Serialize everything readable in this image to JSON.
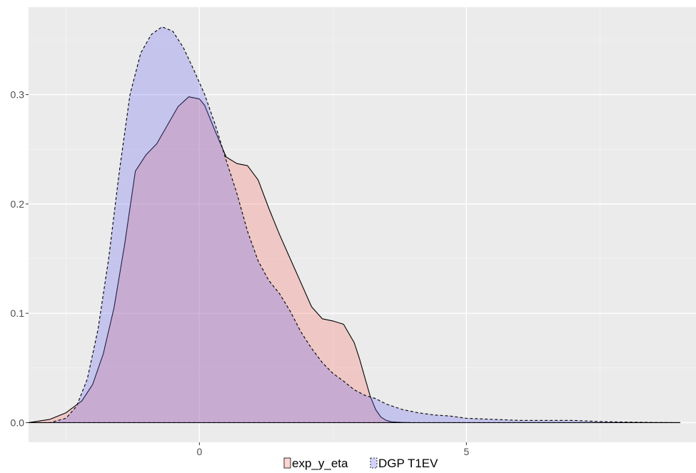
{
  "chart_data": {
    "type": "area",
    "title": "",
    "xlabel": "",
    "ylabel": "",
    "xlim": [
      -3.2,
      9.3
    ],
    "ylim": [
      -0.018,
      0.38
    ],
    "x_ticks": [
      0,
      5
    ],
    "y_ticks": [
      0.0,
      0.1,
      0.2,
      0.3
    ],
    "y_tick_labels": [
      "0.0",
      "0.1",
      "0.2",
      "0.3"
    ],
    "grid": true,
    "legend": "bottom",
    "series": [
      {
        "name": "exp_y_eta",
        "fill": "#F8766D",
        "fill_opacity": 0.3,
        "line": "solid",
        "x": [
          -3.2,
          -2.8,
          -2.5,
          -2.2,
          -2.0,
          -1.8,
          -1.6,
          -1.4,
          -1.2,
          -1.0,
          -0.8,
          -0.6,
          -0.4,
          -0.2,
          0.0,
          0.1,
          0.3,
          0.5,
          0.7,
          0.9,
          1.1,
          1.3,
          1.5,
          1.7,
          1.9,
          2.1,
          2.3,
          2.5,
          2.7,
          2.9,
          3.0,
          3.1,
          3.2,
          3.3,
          3.4,
          3.5,
          3.6,
          3.8,
          4.0,
          4.5,
          5.0,
          6.0,
          7.0,
          8.0,
          9.0
        ],
        "y": [
          0.0,
          0.003,
          0.009,
          0.02,
          0.035,
          0.063,
          0.105,
          0.163,
          0.23,
          0.245,
          0.255,
          0.272,
          0.289,
          0.298,
          0.296,
          0.29,
          0.266,
          0.243,
          0.237,
          0.235,
          0.222,
          0.196,
          0.172,
          0.15,
          0.128,
          0.106,
          0.095,
          0.093,
          0.09,
          0.073,
          0.058,
          0.041,
          0.024,
          0.012,
          0.005,
          0.002,
          0.0007,
          0.0002,
          0.0,
          0.0,
          0.0,
          0.0,
          0.0,
          0.0,
          0.0
        ]
      },
      {
        "name": "DGP T1EV",
        "fill": "#6A6AF0",
        "fill_opacity": 0.3,
        "line": "dashed",
        "x": [
          -3.2,
          -2.8,
          -2.5,
          -2.3,
          -2.1,
          -1.9,
          -1.7,
          -1.5,
          -1.3,
          -1.1,
          -0.9,
          -0.7,
          -0.5,
          -0.3,
          -0.1,
          0.1,
          0.3,
          0.5,
          0.7,
          0.9,
          1.1,
          1.3,
          1.5,
          1.7,
          1.9,
          2.1,
          2.3,
          2.5,
          2.7,
          2.9,
          3.1,
          3.3,
          3.5,
          3.8,
          4.1,
          4.4,
          4.7,
          5.0,
          5.5,
          6.0,
          6.5,
          7.0,
          7.5,
          8.0,
          8.5,
          9.0
        ],
        "y": [
          0.0,
          0.0,
          0.004,
          0.015,
          0.04,
          0.085,
          0.15,
          0.23,
          0.3,
          0.338,
          0.355,
          0.362,
          0.358,
          0.343,
          0.322,
          0.3,
          0.272,
          0.24,
          0.21,
          0.175,
          0.148,
          0.13,
          0.118,
          0.102,
          0.083,
          0.068,
          0.055,
          0.045,
          0.038,
          0.03,
          0.025,
          0.022,
          0.017,
          0.012,
          0.009,
          0.007,
          0.006,
          0.004,
          0.003,
          0.002,
          0.002,
          0.002,
          0.001,
          0.0005,
          0.0002,
          0.0
        ]
      }
    ]
  },
  "colors": {
    "panel_background": "#EBEBEB",
    "grid_major": "#FFFFFF",
    "grid_minor": "#F5F5F5",
    "axis_text": "#4D4D4D",
    "tick_mark": "#333333",
    "outline": "#000000"
  }
}
